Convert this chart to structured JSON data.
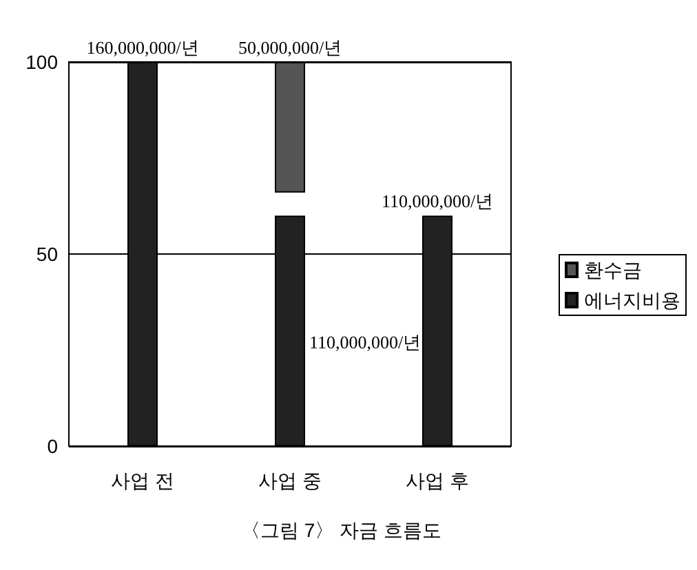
{
  "chart_data": {
    "type": "bar",
    "categories": [
      "사업 전",
      "사업 중",
      "사업 후"
    ],
    "series": [
      {
        "name": "환수금",
        "color": "#555555",
        "values": [
          null,
          34,
          null
        ],
        "base": [
          null,
          66,
          null
        ]
      },
      {
        "name": "에너지비용",
        "color": "#222222",
        "values": [
          100,
          60,
          60
        ]
      }
    ],
    "ylim": [
      0,
      100
    ],
    "yticks": [
      0,
      50,
      100
    ],
    "grid": "y",
    "legend": "right",
    "annotations": [
      {
        "text": "160,000,000/년",
        "x": "사업 전",
        "y": 100
      },
      {
        "text": "50,000,000/년",
        "x": "사업 중",
        "y": 100
      },
      "110,000,000/년",
      {
        "text": "110,000,000/년",
        "x": "사업 후",
        "y": 60
      },
      "〈그림 7〉 자금 흐름도"
    ]
  }
}
